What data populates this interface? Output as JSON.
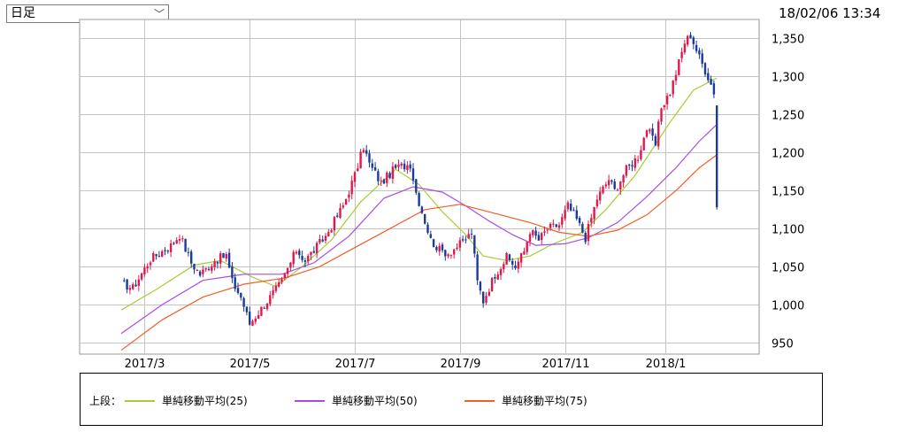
{
  "period_select": {
    "value": "日足",
    "arrow": "﹀"
  },
  "timestamp": "18/02/06 13:34",
  "chart_data": {
    "type": "candlestick",
    "x_tick_labels": [
      "2017/3",
      "2017/5",
      "2017/7",
      "2017/9",
      "2017/11",
      "2018/1"
    ],
    "y_ticks": [
      "950",
      "1,000",
      "1,050",
      "1,100",
      "1,150",
      "1,200",
      "1,250",
      "1,300",
      "1,350"
    ],
    "ylim": [
      935,
      1375
    ],
    "grid": true,
    "up_color": "#e0194b",
    "down_color": "#1a3a9e",
    "close_path": [
      [
        0,
        1028
      ],
      [
        4,
        1022
      ],
      [
        10,
        1060
      ],
      [
        17,
        1078
      ],
      [
        20,
        1092
      ],
      [
        24,
        1055
      ],
      [
        27,
        1040
      ],
      [
        32,
        1058
      ],
      [
        36,
        1065
      ],
      [
        38,
        1030
      ],
      [
        41,
        1010
      ],
      [
        44,
        975
      ],
      [
        46,
        985
      ],
      [
        50,
        1005
      ],
      [
        55,
        1030
      ],
      [
        60,
        1072
      ],
      [
        63,
        1058
      ],
      [
        70,
        1090
      ],
      [
        76,
        1130
      ],
      [
        80,
        1170
      ],
      [
        83,
        1208
      ],
      [
        85,
        1185
      ],
      [
        89,
        1160
      ],
      [
        94,
        1180
      ],
      [
        99,
        1185
      ],
      [
        101,
        1148
      ],
      [
        106,
        1085
      ],
      [
        109,
        1072
      ],
      [
        112,
        1068
      ],
      [
        117,
        1082
      ],
      [
        120,
        1095
      ],
      [
        122,
        1030
      ],
      [
        124,
        1005
      ],
      [
        128,
        1040
      ],
      [
        132,
        1062
      ],
      [
        135,
        1050
      ],
      [
        138,
        1070
      ],
      [
        140,
        1098
      ],
      [
        143,
        1085
      ],
      [
        146,
        1100
      ],
      [
        150,
        1105
      ],
      [
        153,
        1130
      ],
      [
        156,
        1112
      ],
      [
        159,
        1088
      ],
      [
        163,
        1140
      ],
      [
        167,
        1165
      ],
      [
        169,
        1150
      ],
      [
        173,
        1178
      ],
      [
        177,
        1195
      ],
      [
        180,
        1232
      ],
      [
        183,
        1210
      ],
      [
        185,
        1260
      ],
      [
        188,
        1280
      ],
      [
        190,
        1305
      ],
      [
        193,
        1345
      ],
      [
        195,
        1355
      ],
      [
        198,
        1325
      ],
      [
        201,
        1300
      ],
      [
        203,
        1280
      ]
    ],
    "last_candle": {
      "open": 1262,
      "high": 1262,
      "low": 1125,
      "close": 1128
    },
    "series": [
      {
        "name": "単純移動平均(25)",
        "color": "#a8cc36",
        "points": [
          [
            0,
            993
          ],
          [
            12,
            1020
          ],
          [
            25,
            1052
          ],
          [
            34,
            1058
          ],
          [
            45,
            1036
          ],
          [
            53,
            1024
          ],
          [
            62,
            1050
          ],
          [
            72,
            1085
          ],
          [
            82,
            1135
          ],
          [
            94,
            1178
          ],
          [
            102,
            1158
          ],
          [
            110,
            1122
          ],
          [
            118,
            1092
          ],
          [
            124,
            1064
          ],
          [
            132,
            1058
          ],
          [
            140,
            1064
          ],
          [
            148,
            1080
          ],
          [
            158,
            1095
          ],
          [
            166,
            1125
          ],
          [
            176,
            1170
          ],
          [
            188,
            1240
          ],
          [
            196,
            1282
          ],
          [
            204,
            1298
          ]
        ]
      },
      {
        "name": "単純移動平均(50)",
        "color": "#a64ce6",
        "points": [
          [
            0,
            962
          ],
          [
            14,
            1000
          ],
          [
            28,
            1032
          ],
          [
            42,
            1040
          ],
          [
            55,
            1040
          ],
          [
            66,
            1055
          ],
          [
            78,
            1090
          ],
          [
            90,
            1140
          ],
          [
            100,
            1155
          ],
          [
            110,
            1148
          ],
          [
            118,
            1130
          ],
          [
            126,
            1110
          ],
          [
            134,
            1092
          ],
          [
            142,
            1078
          ],
          [
            152,
            1080
          ],
          [
            160,
            1088
          ],
          [
            170,
            1108
          ],
          [
            180,
            1142
          ],
          [
            190,
            1180
          ],
          [
            198,
            1215
          ],
          [
            204,
            1237
          ]
        ]
      },
      {
        "name": "単純移動平均(75)",
        "color": "#f05f24",
        "points": [
          [
            0,
            940
          ],
          [
            14,
            980
          ],
          [
            28,
            1010
          ],
          [
            42,
            1027
          ],
          [
            56,
            1035
          ],
          [
            68,
            1050
          ],
          [
            80,
            1075
          ],
          [
            92,
            1100
          ],
          [
            104,
            1125
          ],
          [
            116,
            1132
          ],
          [
            128,
            1120
          ],
          [
            140,
            1108
          ],
          [
            150,
            1095
          ],
          [
            160,
            1090
          ],
          [
            170,
            1098
          ],
          [
            180,
            1118
          ],
          [
            190,
            1150
          ],
          [
            198,
            1180
          ],
          [
            204,
            1197
          ]
        ]
      }
    ]
  },
  "legend": {
    "prefix": "上段：",
    "items": [
      {
        "label": "単純移動平均(25)",
        "color": "#a8cc36"
      },
      {
        "label": "単純移動平均(50)",
        "color": "#a64ce6"
      },
      {
        "label": "単純移動平均(75)",
        "color": "#f05f24"
      }
    ]
  }
}
